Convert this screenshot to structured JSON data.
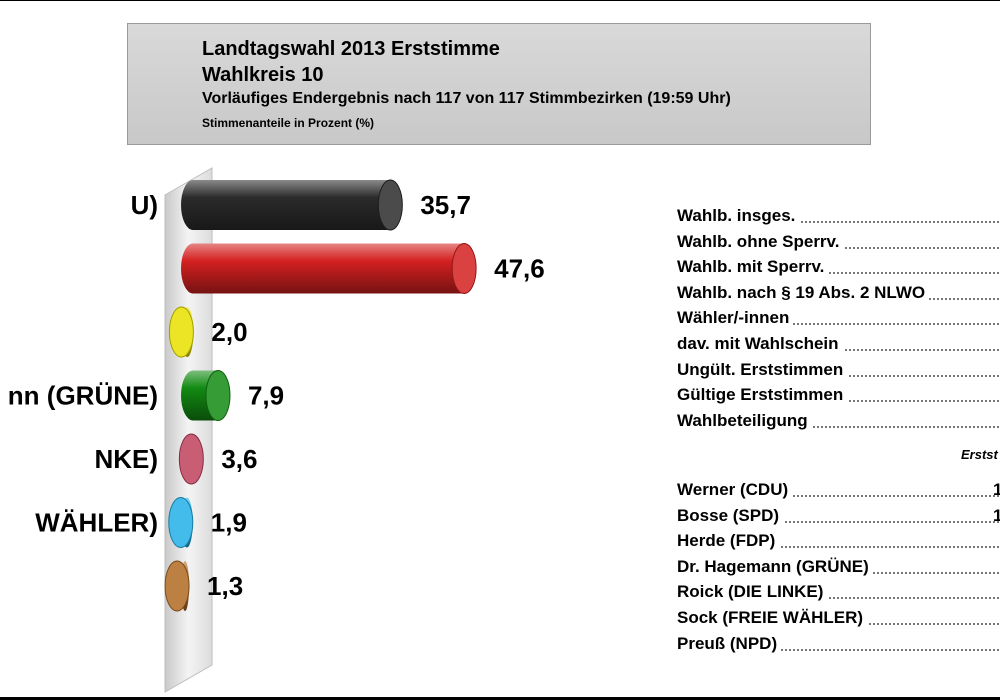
{
  "header": {
    "title": "Landtagswahl 2013 Erststimme",
    "wahlkreis": "Wahlkreis 10",
    "status": "Vorläufiges Endergebnis nach 117 von 117 Stimmbezirken (19:59 Uhr)",
    "unit": "Stimmenanteile in Prozent (%)"
  },
  "chart_data": {
    "type": "bar",
    "orientation": "horizontal",
    "categories": [
      "U)",
      "",
      "",
      "nn (GRÜNE)",
      "NKE)",
      "WÄHLER)",
      ""
    ],
    "values": [
      35.7,
      47.6,
      2.0,
      7.9,
      3.6,
      1.9,
      1.3
    ],
    "value_labels": [
      "35,7",
      "47,6",
      "2,0",
      "7,9",
      "3,6",
      "1,9",
      "1,3"
    ],
    "colors": [
      "#2b2b2b",
      "#d42020",
      "#e8e000",
      "#128a12",
      "#c0405a",
      "#22b0e8",
      "#b06a22"
    ],
    "xlim": [
      0,
      50
    ]
  },
  "stats_rows": [
    "Wahlb. insges.",
    "Wahlb. ohne Sperrv.",
    "Wahlb. mit Sperrv.",
    "Wahlb. nach § 19 Abs. 2 NLWO",
    "Wähler/-innen",
    "dav. mit Wahlschein",
    "Ungült. Erststimmen",
    "Gültige Erststimmen",
    "Wahlbeteiligung"
  ],
  "column_header": "Erstst",
  "candidate_rows": [
    "Werner (CDU)",
    "Bosse (SPD)",
    "Herde (FDP)",
    "Dr. Hagemann (GRÜNE)",
    "Roick (DIE LINKE)",
    "Sock (FREIE WÄHLER)",
    "Preuß (NPD)"
  ],
  "candidate_value_fragments": [
    "1",
    "1"
  ]
}
